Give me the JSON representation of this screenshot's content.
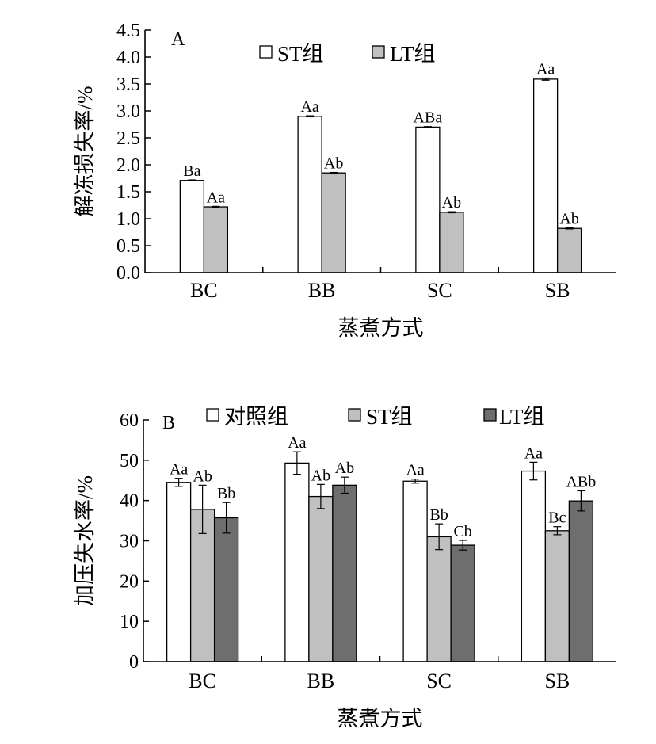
{
  "chart_data": [
    {
      "type": "bar",
      "panel_label": "A",
      "xlabel": "蒸煮方式",
      "ylabel": "解冻损失率/%",
      "categories": [
        "BC",
        "BB",
        "SC",
        "SB"
      ],
      "ylim": [
        0,
        4.5
      ],
      "yticks": [
        "0.0",
        "0.5",
        "1.0",
        "1.5",
        "2.0",
        "2.5",
        "3.0",
        "3.5",
        "4.0",
        "4.5"
      ],
      "legend_position": "top",
      "series": [
        {
          "name": "ST组",
          "color": "#ffffff",
          "values": [
            1.71,
            2.9,
            2.7,
            3.59
          ],
          "errors": [
            0.01,
            0.01,
            0.01,
            0.02
          ],
          "labels": [
            "Ba",
            "Aa",
            "ABa",
            "Aa"
          ]
        },
        {
          "name": "LT组",
          "color": "#c0c0c0",
          "values": [
            1.22,
            1.85,
            1.12,
            0.82
          ],
          "errors": [
            0.01,
            0.01,
            0.01,
            0.01
          ],
          "labels": [
            "Aa",
            "Ab",
            "Ab",
            "Ab"
          ]
        }
      ]
    },
    {
      "type": "bar",
      "panel_label": "B",
      "xlabel": "蒸煮方式",
      "ylabel": "加压失水率/%",
      "categories": [
        "BC",
        "BB",
        "SC",
        "SB"
      ],
      "ylim": [
        0,
        60
      ],
      "yticks": [
        "0",
        "10",
        "20",
        "30",
        "40",
        "50",
        "60"
      ],
      "legend_position": "top",
      "series": [
        {
          "name": "对照组",
          "color": "#ffffff",
          "values": [
            44.5,
            49.3,
            44.8,
            47.3
          ],
          "errors": [
            1.0,
            2.8,
            0.5,
            2.2
          ],
          "labels": [
            "Aa",
            "Aa",
            "Aa",
            "Aa"
          ]
        },
        {
          "name": "ST组",
          "color": "#c0c0c0",
          "values": [
            37.8,
            41.0,
            31.0,
            32.5
          ],
          "errors": [
            6.0,
            3.0,
            3.2,
            1.0
          ],
          "labels": [
            "Ab",
            "Ab",
            "Bb",
            "Bc"
          ]
        },
        {
          "name": "LT组",
          "color": "#6e6e6e",
          "values": [
            35.7,
            43.8,
            28.9,
            39.9
          ],
          "errors": [
            3.8,
            2.0,
            1.2,
            2.5
          ],
          "labels": [
            "Bb",
            "Ab",
            "Cb",
            "ABb"
          ]
        }
      ]
    }
  ]
}
